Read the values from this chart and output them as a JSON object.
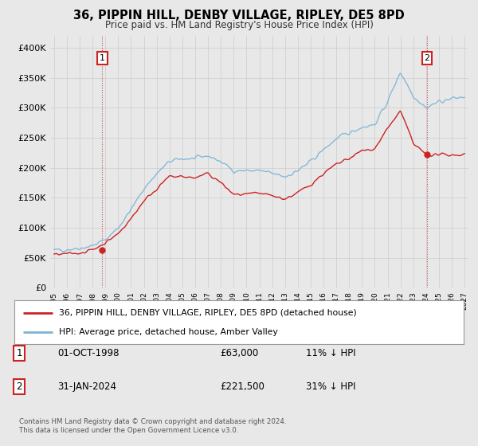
{
  "title": "36, PIPPIN HILL, DENBY VILLAGE, RIPLEY, DE5 8PD",
  "subtitle": "Price paid vs. HM Land Registry's House Price Index (HPI)",
  "ylim": [
    0,
    420000
  ],
  "yticks": [
    0,
    50000,
    100000,
    150000,
    200000,
    250000,
    300000,
    350000,
    400000
  ],
  "ytick_labels": [
    "£0",
    "£50K",
    "£100K",
    "£150K",
    "£200K",
    "£250K",
    "£300K",
    "£350K",
    "£400K"
  ],
  "hpi_color": "#7ab4d8",
  "price_color": "#cc2222",
  "sale1_year": 1998.75,
  "sale1_price": 63000,
  "sale2_year": 2024.08,
  "sale2_price": 221500,
  "legend_line1": "36, PIPPIN HILL, DENBY VILLAGE, RIPLEY, DE5 8PD (detached house)",
  "legend_line2": "HPI: Average price, detached house, Amber Valley",
  "table_row1": [
    "1",
    "01-OCT-1998",
    "£63,000",
    "11% ↓ HPI"
  ],
  "table_row2": [
    "2",
    "31-JAN-2024",
    "£221,500",
    "31% ↓ HPI"
  ],
  "footer": "Contains HM Land Registry data © Crown copyright and database right 2024.\nThis data is licensed under the Open Government Licence v3.0.",
  "bg_color": "#e8e8e8",
  "plot_bg_color": "#e8e8e8",
  "grid_color": "#cccccc",
  "hpi_knots_x": [
    1995,
    1996,
    1997,
    1998,
    1999,
    2000,
    2001,
    2002,
    2003,
    2004,
    2005,
    2006,
    2007,
    2008,
    2009,
    2010,
    2011,
    2012,
    2013,
    2014,
    2015,
    2016,
    2017,
    2018,
    2019,
    2020,
    2021,
    2022,
    2023,
    2024,
    2025,
    2026,
    2027
  ],
  "hpi_knots_y": [
    62000,
    64000,
    66000,
    70000,
    80000,
    100000,
    130000,
    165000,
    190000,
    210000,
    215000,
    215000,
    220000,
    210000,
    195000,
    195000,
    195000,
    190000,
    185000,
    195000,
    210000,
    230000,
    248000,
    258000,
    268000,
    272000,
    310000,
    360000,
    320000,
    300000,
    310000,
    315000,
    318000
  ],
  "price_knots_x": [
    1995,
    1996,
    1997,
    1998,
    1999,
    2000,
    2001,
    2002,
    2003,
    2004,
    2005,
    2006,
    2007,
    2008,
    2009,
    2010,
    2011,
    2012,
    2013,
    2014,
    2015,
    2016,
    2017,
    2018,
    2019,
    2020,
    2021,
    2022,
    2023,
    2024,
    2025,
    2026,
    2027
  ],
  "price_knots_y": [
    55000,
    56000,
    58000,
    63000,
    75000,
    90000,
    115000,
    145000,
    165000,
    185000,
    185000,
    183000,
    190000,
    175000,
    155000,
    155000,
    157000,
    153000,
    148000,
    158000,
    172000,
    190000,
    205000,
    215000,
    228000,
    232000,
    265000,
    295000,
    240000,
    221500,
    221500,
    221500,
    221500
  ]
}
